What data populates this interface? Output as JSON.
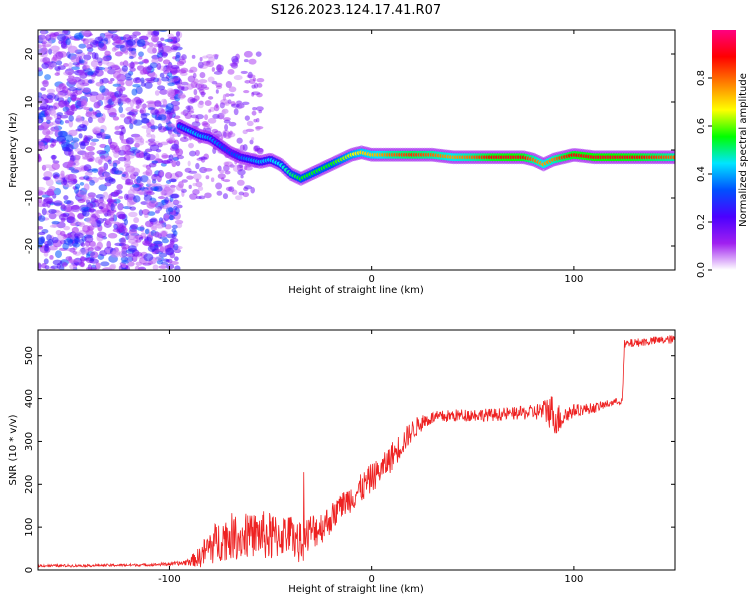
{
  "title": "S126.2023.124.17.41.R07",
  "chart_data": [
    {
      "type": "heatmap",
      "xlabel": "Height of straight line (km)",
      "ylabel": "Frequency (Hz)",
      "xlim": [
        -165,
        150
      ],
      "ylim": [
        -25,
        25
      ],
      "x_ticks": [
        "-100",
        "0",
        "100"
      ],
      "y_ticks": [
        "-20",
        "-10",
        "0",
        "10",
        "20"
      ],
      "colorbar": {
        "label": "Normalized spectral amplitude",
        "range": [
          0,
          1
        ],
        "ticks": [
          "0.0",
          "0.2",
          "0.4",
          "0.6",
          "0.8"
        ],
        "colormap": [
          "#ffffff",
          "#a020f0",
          "#4b00ff",
          "#0050ff",
          "#00e5ff",
          "#00ff00",
          "#ffff00",
          "#ff8000",
          "#ff0000",
          "#ff0080"
        ]
      },
      "ridge": {
        "x": [
          -95,
          -90,
          -85,
          -80,
          -75,
          -70,
          -65,
          -60,
          -55,
          -50,
          -45,
          -40,
          -35,
          -30,
          -25,
          -20,
          -15,
          -10,
          -5,
          0,
          5,
          10,
          20,
          30,
          40,
          50,
          60,
          70,
          75,
          80,
          85,
          90,
          95,
          100,
          110,
          120,
          130,
          140,
          150
        ],
        "y": [
          5,
          4,
          3,
          2.5,
          1,
          -0.5,
          -1.5,
          -2,
          -2.5,
          -2,
          -3,
          -5,
          -6,
          -5,
          -4,
          -3,
          -2,
          -1,
          -0.5,
          -1,
          -1,
          -1,
          -1,
          -1,
          -1.5,
          -1.5,
          -1.5,
          -1.5,
          -1.5,
          -2,
          -3,
          -2,
          -1.5,
          -1,
          -1.5,
          -1.5,
          -1.5,
          -1.5,
          -1.5
        ],
        "amplitude": [
          0.35,
          0.4,
          0.4,
          0.38,
          0.35,
          0.3,
          0.35,
          0.38,
          0.4,
          0.42,
          0.45,
          0.5,
          0.55,
          0.55,
          0.55,
          0.55,
          0.6,
          0.65,
          0.7,
          0.72,
          0.75,
          0.8,
          0.85,
          0.8,
          0.75,
          0.8,
          0.9,
          0.92,
          0.9,
          0.8,
          0.75,
          0.78,
          0.85,
          0.9,
          0.92,
          0.92,
          0.9,
          0.85,
          0.8
        ]
      },
      "noise_region_x": [
        -165,
        -95
      ]
    },
    {
      "type": "line",
      "xlabel": "Height of straight line (km)",
      "ylabel": "SNR (10 * v/v)",
      "xlim": [
        -165,
        150
      ],
      "ylim": [
        0,
        560
      ],
      "x_ticks": [
        "-100",
        "0",
        "100"
      ],
      "y_ticks": [
        "0",
        "100",
        "200",
        "300",
        "400",
        "500"
      ],
      "color": "#ee2222",
      "series": [
        {
          "x": [
            -165,
            -150,
            -130,
            -110,
            -95,
            -90,
            -85,
            -80,
            -75,
            -70,
            -65,
            -60,
            -55,
            -50,
            -45,
            -40,
            -35,
            -30,
            -25,
            -20,
            -15,
            -10,
            -5,
            0,
            5,
            10,
            15,
            20,
            25,
            30,
            40,
            50,
            60,
            70,
            80,
            85,
            88,
            92,
            95,
            100,
            110,
            115,
            120,
            124,
            125,
            130,
            140,
            150
          ],
          "y": [
            10,
            10,
            11,
            12,
            15,
            20,
            30,
            55,
            70,
            80,
            75,
            80,
            85,
            75,
            80,
            85,
            60,
            90,
            100,
            120,
            150,
            170,
            190,
            215,
            235,
            265,
            295,
            325,
            345,
            355,
            360,
            362,
            362,
            365,
            368,
            372,
            375,
            350,
            360,
            372,
            378,
            385,
            392,
            395,
            525,
            530,
            535,
            538
          ],
          "jitter": [
            3,
            3,
            3,
            3,
            5,
            10,
            25,
            45,
            50,
            55,
            50,
            50,
            55,
            60,
            50,
            45,
            50,
            45,
            40,
            35,
            30,
            35,
            35,
            35,
            30,
            35,
            30,
            25,
            20,
            15,
            15,
            15,
            15,
            15,
            18,
            25,
            45,
            40,
            25,
            15,
            12,
            10,
            8,
            8,
            12,
            10,
            10,
            10
          ]
        }
      ]
    }
  ]
}
